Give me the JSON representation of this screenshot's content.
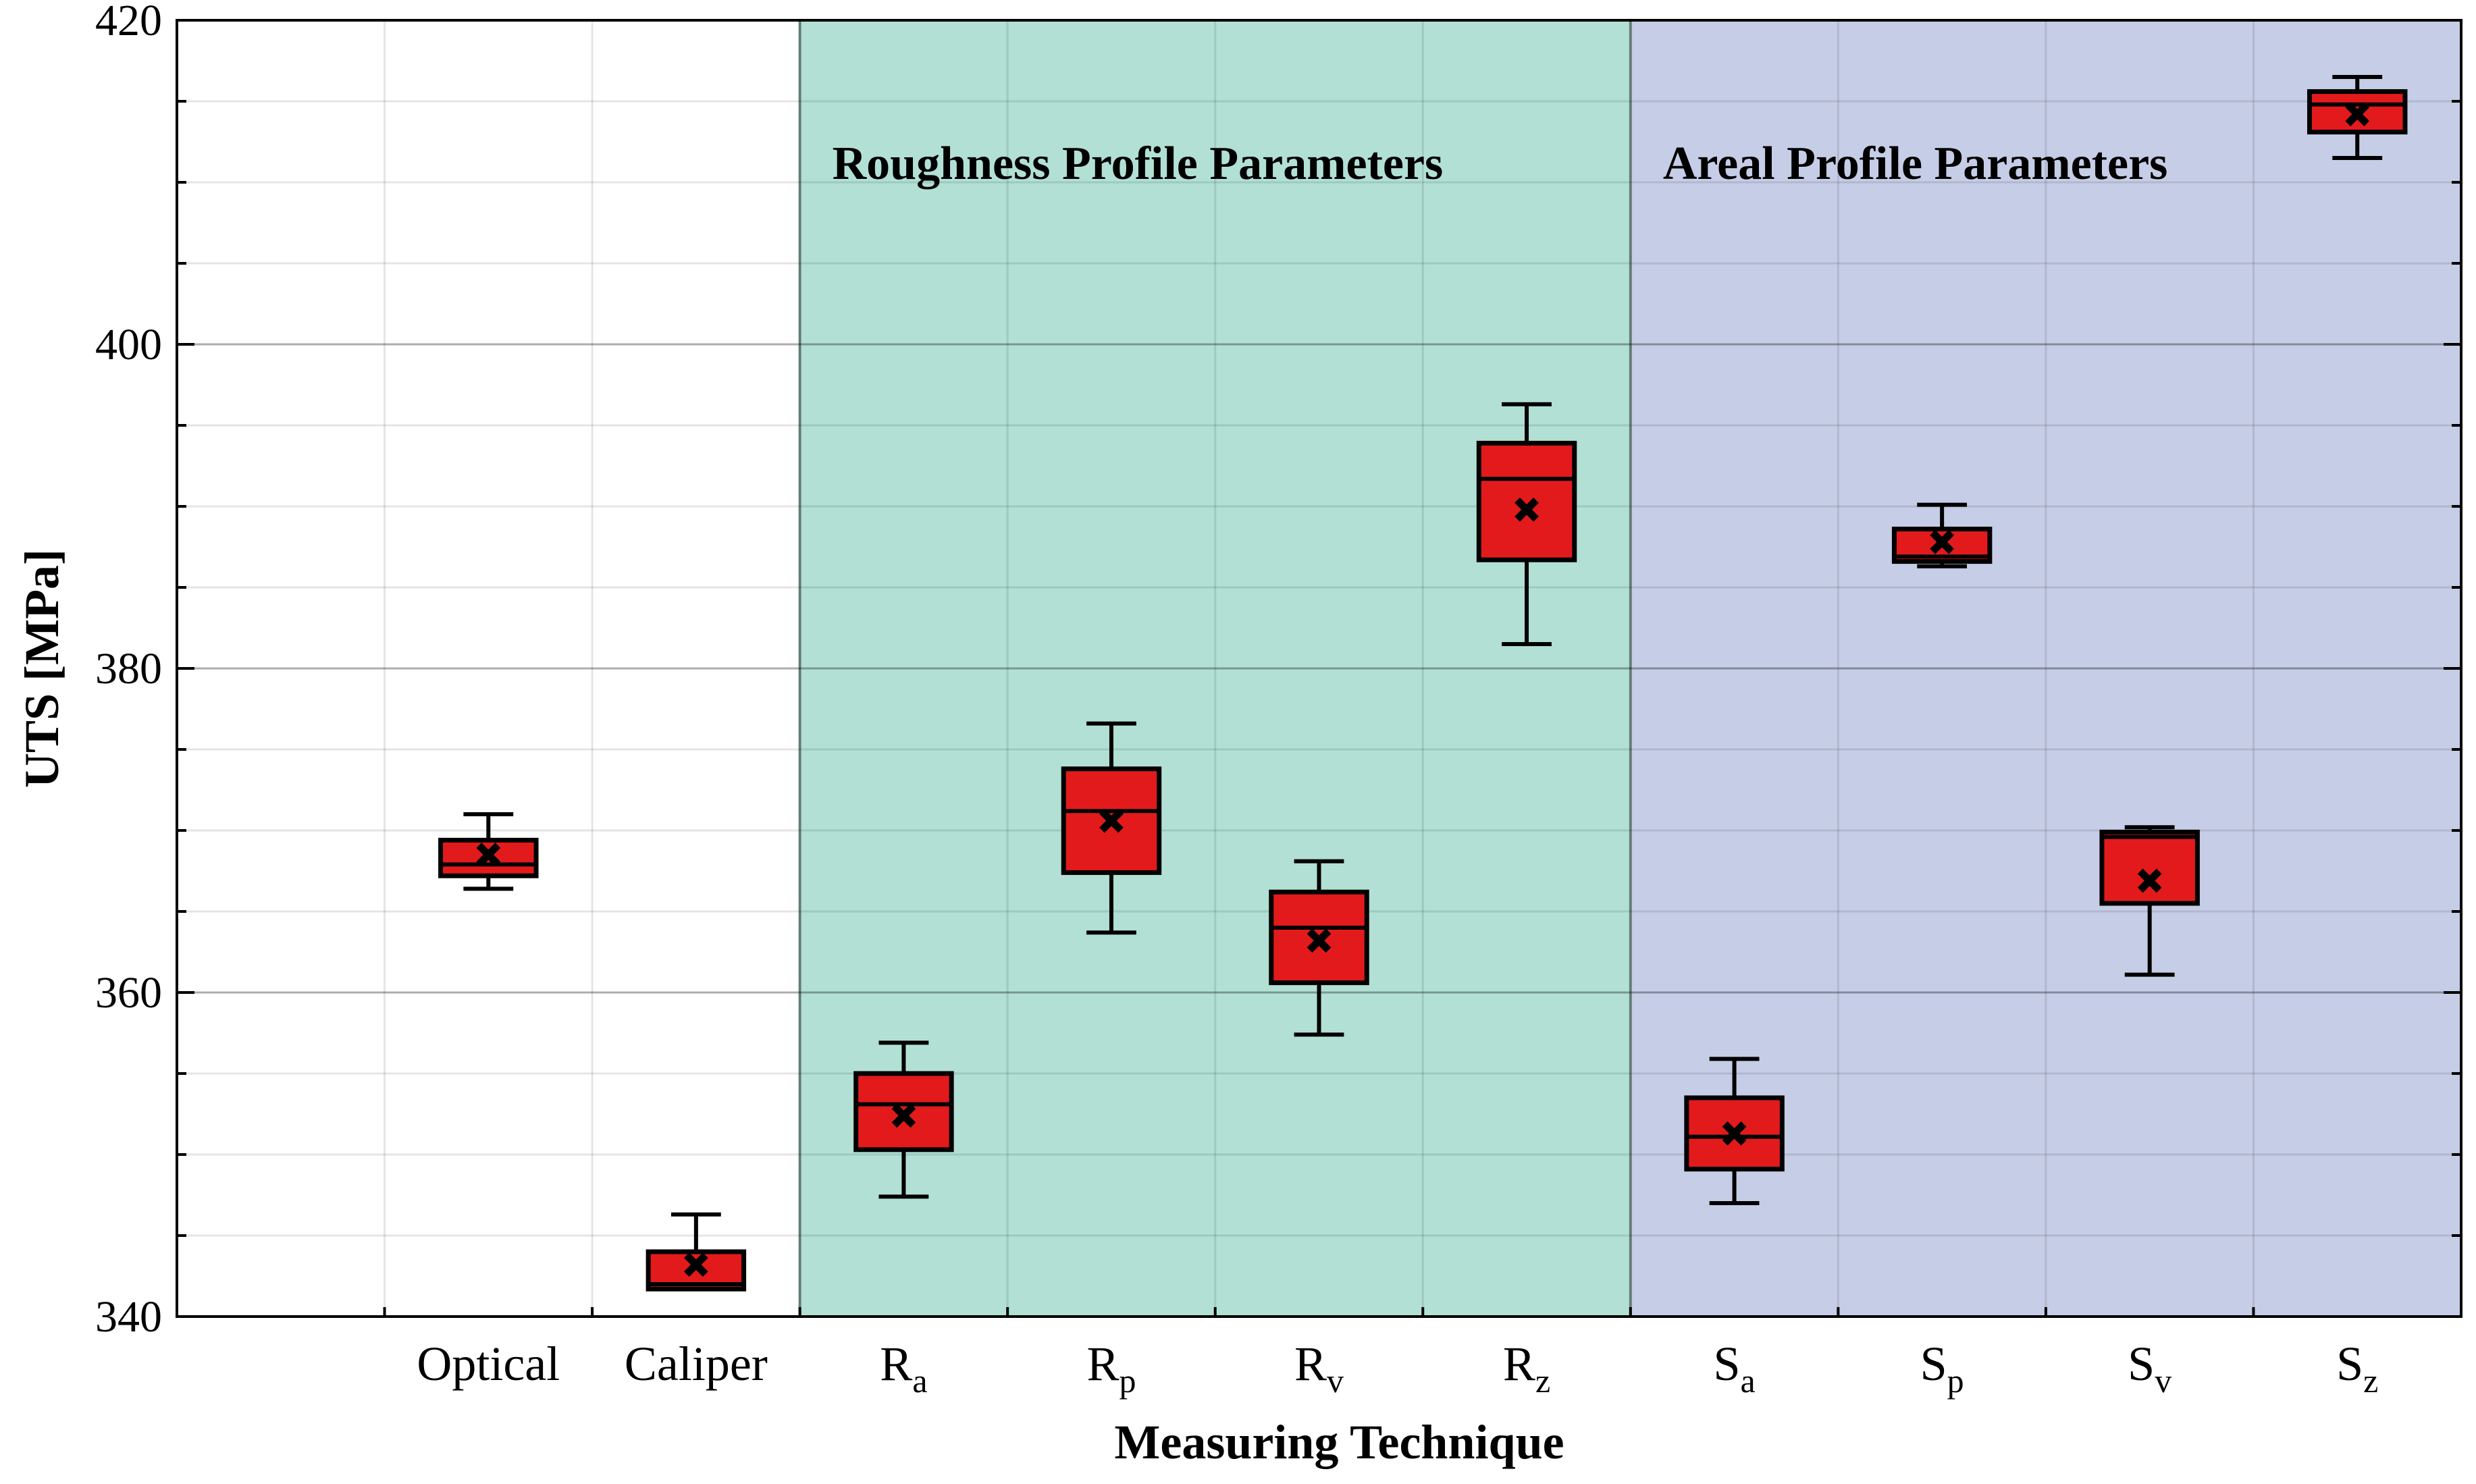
{
  "chart_data": {
    "type": "box",
    "title": "",
    "xlabel": "Measuring Technique",
    "ylabel": "UTS [MPa]",
    "ylim": [
      340,
      420
    ],
    "yticks": [
      340,
      360,
      380,
      400,
      420
    ],
    "grid": true,
    "regions": [
      {
        "label": "Roughness Profile Parameters",
        "from_category": 2,
        "to_category": 5,
        "color": "#b2e0d4"
      },
      {
        "label": "Areal Profile Parameters",
        "from_category": 6,
        "to_category": 9,
        "color": "#c6cde6"
      }
    ],
    "categories": [
      {
        "base": "Optical",
        "sub": ""
      },
      {
        "base": "Caliper",
        "sub": ""
      },
      {
        "base": "R",
        "sub": "a"
      },
      {
        "base": "R",
        "sub": "p"
      },
      {
        "base": "R",
        "sub": "v"
      },
      {
        "base": "R",
        "sub": "z"
      },
      {
        "base": "S",
        "sub": "a"
      },
      {
        "base": "S",
        "sub": "p"
      },
      {
        "base": "S",
        "sub": "v"
      },
      {
        "base": "S",
        "sub": "z"
      }
    ],
    "boxes": [
      {
        "min": 366.4,
        "q1": 367.2,
        "median": 367.9,
        "q3": 369.4,
        "max": 371.0,
        "mean": 368.5
      },
      {
        "min": 341.7,
        "q1": 341.7,
        "median": 342.0,
        "q3": 344.0,
        "max": 346.3,
        "mean": 343.2
      },
      {
        "min": 347.4,
        "q1": 350.3,
        "median": 353.1,
        "q3": 355.0,
        "max": 356.9,
        "mean": 352.4
      },
      {
        "min": 363.7,
        "q1": 367.4,
        "median": 371.2,
        "q3": 373.8,
        "max": 376.6,
        "mean": 370.6
      },
      {
        "min": 357.4,
        "q1": 360.6,
        "median": 364.0,
        "q3": 366.2,
        "max": 368.1,
        "mean": 363.2
      },
      {
        "min": 381.5,
        "q1": 386.7,
        "median": 391.7,
        "q3": 393.9,
        "max": 396.3,
        "mean": 389.8
      },
      {
        "min": 347.0,
        "q1": 349.1,
        "median": 351.1,
        "q3": 353.5,
        "max": 355.9,
        "mean": 351.3
      },
      {
        "min": 386.3,
        "q1": 386.6,
        "median": 386.9,
        "q3": 388.6,
        "max": 390.1,
        "mean": 387.8
      },
      {
        "min": 361.1,
        "q1": 365.5,
        "median": 369.6,
        "q3": 369.9,
        "max": 370.2,
        "mean": 366.9
      },
      {
        "min": 411.5,
        "q1": 413.1,
        "median": 414.8,
        "q3": 415.6,
        "max": 416.5,
        "mean": 414.2
      }
    ],
    "box_color": "#e31a1c",
    "mean_marker": "x"
  }
}
